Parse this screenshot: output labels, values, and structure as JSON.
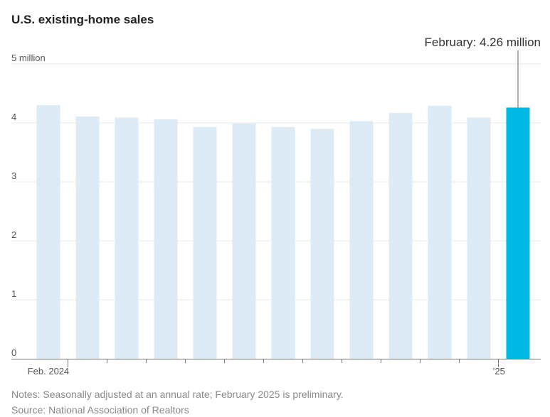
{
  "chart_data": {
    "type": "bar",
    "title": "U.S. existing-home sales",
    "y_unit_label": "5 million",
    "ylim": [
      0,
      5
    ],
    "y_ticks": [
      {
        "value": 0,
        "label": "0"
      },
      {
        "value": 1,
        "label": "1"
      },
      {
        "value": 2,
        "label": "2"
      },
      {
        "value": 3,
        "label": "3"
      },
      {
        "value": 4,
        "label": "4"
      },
      {
        "value": 5,
        "label": "5 million"
      }
    ],
    "categories": [
      "2024-02",
      "2024-03",
      "2024-04",
      "2024-05",
      "2024-06",
      "2024-07",
      "2024-08",
      "2024-09",
      "2024-10",
      "2024-11",
      "2024-12",
      "2025-01",
      "2025-02"
    ],
    "values": [
      4.3,
      4.11,
      4.09,
      4.06,
      3.93,
      3.99,
      3.93,
      3.9,
      4.03,
      4.17,
      4.29,
      4.09,
      4.26
    ],
    "x_labels": [
      {
        "index": 0,
        "text": "Feb. 2024"
      },
      {
        "index": 11,
        "text": "’25"
      }
    ],
    "highlight_index": 12,
    "annotation": "February: 4.26 million",
    "grid": true,
    "colors": {
      "bar": "#dcebf6",
      "highlight": "#00b8e6",
      "grid": "#e9e9e9",
      "axis": "#777777"
    }
  },
  "notes": "Notes: Seasonally adjusted at an annual rate; February 2025 is preliminary.",
  "source": "Source: National Association of Realtors"
}
